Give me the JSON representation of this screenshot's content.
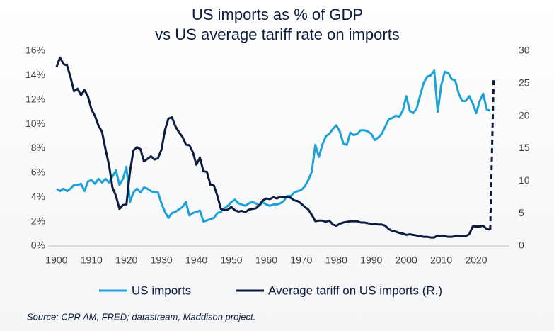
{
  "chart_data": {
    "type": "line",
    "title_lines": [
      "US imports as % of GDP",
      "vs US average tariff rate on imports"
    ],
    "source": "Source: CPR AM, FRED; datastream, Maddison project.",
    "xlim": [
      1897.6,
      2029.5
    ],
    "xticks": [
      1900,
      1910,
      1920,
      1930,
      1940,
      1950,
      1960,
      1970,
      1980,
      1990,
      2000,
      2010,
      2020
    ],
    "ylim": [
      0,
      16
    ],
    "yticks": [
      {
        "value": 0,
        "label": "0%"
      },
      {
        "value": 2,
        "label": "2%"
      },
      {
        "value": 4,
        "label": "4%"
      },
      {
        "value": 6,
        "label": "6%"
      },
      {
        "value": 8,
        "label": "8%"
      },
      {
        "value": 10,
        "label": "10%"
      },
      {
        "value": 12,
        "label": "12%"
      },
      {
        "value": 14,
        "label": "14%"
      },
      {
        "value": 16,
        "label": "16%"
      }
    ],
    "y2lim": [
      0,
      30
    ],
    "y2ticks": [
      0,
      5,
      10,
      15,
      20,
      25,
      30
    ],
    "legend": "bottom",
    "series": [
      {
        "name": "US imports",
        "color": "#1ea0d9",
        "axis": "y",
        "x": [
          1900,
          1901,
          1902,
          1903,
          1904,
          1905,
          1906,
          1907,
          1908,
          1909,
          1910,
          1911,
          1912,
          1913,
          1914,
          1915,
          1916,
          1917,
          1918,
          1919,
          1920,
          1921,
          1922,
          1923,
          1924,
          1925,
          1926,
          1927,
          1928,
          1929,
          1930,
          1931,
          1932,
          1933,
          1934,
          1935,
          1936,
          1937,
          1938,
          1939,
          1940,
          1941,
          1942,
          1943,
          1944,
          1945,
          1946,
          1947,
          1948,
          1949,
          1950,
          1951,
          1952,
          1953,
          1954,
          1955,
          1956,
          1957,
          1958,
          1959,
          1960,
          1961,
          1962,
          1963,
          1964,
          1965,
          1966,
          1967,
          1968,
          1969,
          1970,
          1971,
          1972,
          1973,
          1974,
          1975,
          1976,
          1977,
          1978,
          1979,
          1980,
          1981,
          1982,
          1983,
          1984,
          1985,
          1986,
          1987,
          1988,
          1989,
          1990,
          1991,
          1992,
          1993,
          1994,
          1995,
          1996,
          1997,
          1998,
          1999,
          2000,
          2001,
          2002,
          2003,
          2004,
          2005,
          2006,
          2007,
          2008,
          2009,
          2010,
          2011,
          2012,
          2013,
          2014,
          2015,
          2016,
          2017,
          2018,
          2019,
          2020,
          2021,
          2022,
          2023,
          2024
        ],
        "values": [
          4.7,
          4.5,
          4.7,
          4.5,
          4.7,
          5.0,
          5.0,
          5.1,
          4.5,
          5.3,
          5.4,
          5.1,
          5.5,
          5.2,
          5.5,
          5.2,
          5.7,
          6.2,
          5.0,
          5.5,
          6.5,
          3.6,
          4.4,
          4.7,
          4.4,
          4.8,
          4.7,
          4.5,
          4.4,
          4.4,
          3.5,
          2.8,
          2.3,
          2.7,
          2.8,
          3.0,
          3.2,
          3.6,
          2.5,
          2.7,
          2.8,
          2.9,
          2.0,
          2.1,
          2.2,
          2.3,
          2.7,
          2.8,
          3.1,
          3.3,
          3.6,
          3.8,
          3.5,
          3.4,
          3.3,
          3.5,
          3.6,
          3.5,
          3.3,
          3.6,
          3.4,
          3.3,
          3.4,
          3.4,
          3.5,
          3.7,
          4.1,
          4.1,
          4.4,
          4.5,
          4.6,
          4.9,
          5.4,
          6.1,
          8.3,
          7.3,
          8.3,
          9.0,
          9.2,
          9.6,
          9.9,
          9.4,
          8.4,
          8.3,
          9.3,
          9.1,
          9.2,
          9.5,
          9.5,
          9.4,
          9.2,
          8.7,
          8.9,
          9.2,
          9.8,
          10.4,
          10.5,
          10.7,
          10.6,
          11.1,
          12.3,
          11.1,
          10.9,
          11.3,
          12.4,
          13.4,
          13.9,
          14.0,
          14.4,
          11.0,
          13.2,
          14.3,
          14.2,
          13.7,
          13.6,
          12.5,
          11.9,
          11.9,
          12.3,
          11.7,
          10.9,
          11.9,
          12.5,
          11.2,
          11.1
        ]
      },
      {
        "name": "Average tariff on US imports (R.)",
        "color": "#0d1b3e",
        "axis": "y2",
        "x": [
          1900,
          1901,
          1902,
          1903,
          1904,
          1905,
          1906,
          1907,
          1908,
          1909,
          1910,
          1911,
          1912,
          1913,
          1914,
          1915,
          1916,
          1917,
          1918,
          1919,
          1920,
          1921,
          1922,
          1923,
          1924,
          1925,
          1926,
          1927,
          1928,
          1929,
          1930,
          1931,
          1932,
          1933,
          1934,
          1935,
          1936,
          1937,
          1938,
          1939,
          1940,
          1941,
          1942,
          1943,
          1944,
          1945,
          1946,
          1947,
          1948,
          1949,
          1950,
          1951,
          1952,
          1953,
          1954,
          1955,
          1956,
          1957,
          1958,
          1959,
          1960,
          1961,
          1962,
          1963,
          1964,
          1965,
          1966,
          1967,
          1968,
          1969,
          1970,
          1971,
          1972,
          1973,
          1974,
          1975,
          1976,
          1977,
          1978,
          1979,
          1980,
          1981,
          1982,
          1983,
          1984,
          1985,
          1986,
          1987,
          1988,
          1989,
          1990,
          1991,
          1992,
          1993,
          1994,
          1995,
          1996,
          1997,
          1998,
          1999,
          2000,
          2001,
          2002,
          2003,
          2004,
          2005,
          2006,
          2007,
          2008,
          2009,
          2010,
          2011,
          2012,
          2013,
          2014,
          2015,
          2016,
          2017,
          2018,
          2019,
          2020,
          2021,
          2022,
          2023,
          2024
        ],
        "values": [
          27.5,
          29.0,
          28.0,
          27.8,
          26.0,
          23.8,
          24.2,
          23.2,
          24.0,
          23.0,
          21.0,
          20.0,
          18.5,
          17.6,
          14.9,
          12.5,
          9.0,
          7.7,
          5.7,
          6.3,
          6.4,
          11.4,
          14.7,
          15.2,
          14.9,
          13.0,
          13.4,
          13.8,
          13.3,
          13.5,
          14.8,
          17.8,
          19.6,
          19.8,
          18.4,
          17.5,
          16.8,
          15.6,
          15.5,
          14.4,
          12.5,
          13.6,
          11.5,
          11.4,
          9.4,
          9.3,
          7.7,
          5.7,
          5.5,
          5.6,
          6.0,
          5.5,
          5.3,
          5.4,
          5.2,
          5.6,
          5.7,
          5.8,
          6.3,
          7.0,
          7.3,
          7.2,
          7.5,
          7.3,
          7.6,
          7.5,
          7.6,
          7.4,
          7.0,
          6.9,
          6.5,
          6.0,
          5.6,
          4.8,
          3.8,
          3.9,
          3.9,
          3.7,
          3.9,
          3.3,
          3.1,
          3.4,
          3.6,
          3.7,
          3.8,
          3.8,
          3.8,
          3.6,
          3.6,
          3.5,
          3.4,
          3.4,
          3.3,
          3.3,
          3.1,
          2.6,
          2.3,
          2.2,
          2.0,
          1.9,
          1.7,
          1.8,
          1.7,
          1.6,
          1.5,
          1.4,
          1.4,
          1.3,
          1.3,
          1.6,
          1.5,
          1.5,
          1.4,
          1.4,
          1.5,
          1.5,
          1.5,
          1.5,
          1.8,
          3.0,
          3.0,
          3.0,
          3.1,
          2.6,
          2.5
        ]
      },
      {
        "color": "#0d1b3e",
        "axis": "y2",
        "dashed": true,
        "x": [
          2024,
          2025
        ],
        "values": [
          2.5,
          26
        ]
      }
    ]
  }
}
